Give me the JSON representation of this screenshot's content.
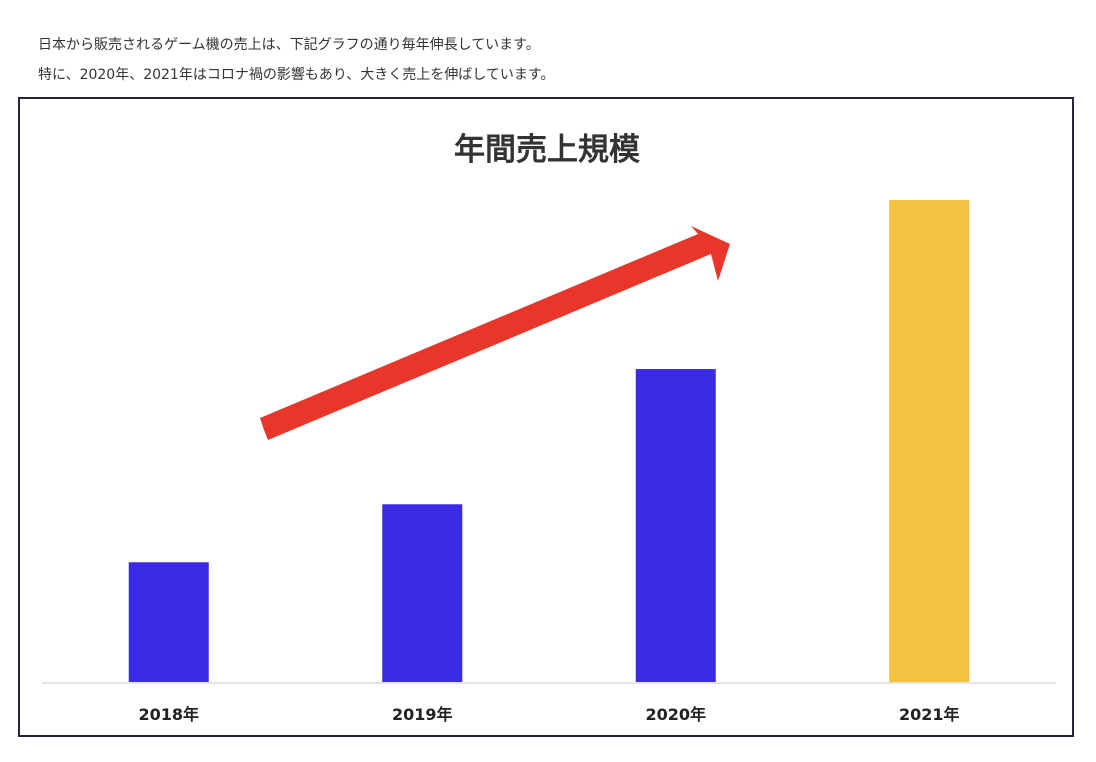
{
  "intro": {
    "line1": "日本から販売されるゲーム機の売上は、下記グラフの通り毎年伸長しています。",
    "line2": "特に、2020年、2021年はコロナ禍の影響もあり、大きく売上を伸ばしています。"
  },
  "chart_data": {
    "type": "bar",
    "title": "年間売上規模",
    "categories": [
      "2018年",
      "2019年",
      "2020年",
      "2021年"
    ],
    "values": [
      25,
      37,
      65,
      100
    ],
    "ylim": [
      0,
      100
    ],
    "grid": false,
    "legend": "none",
    "bar_colors": [
      "#3a2ce6",
      "#3a2ce6",
      "#3a2ce6",
      "#f2c241"
    ],
    "annotations": [
      {
        "type": "arrow",
        "color": "#e8362a",
        "meaning": "upward trend"
      }
    ],
    "baseline_color": "#e3e3e3",
    "title_color": "#333333"
  }
}
